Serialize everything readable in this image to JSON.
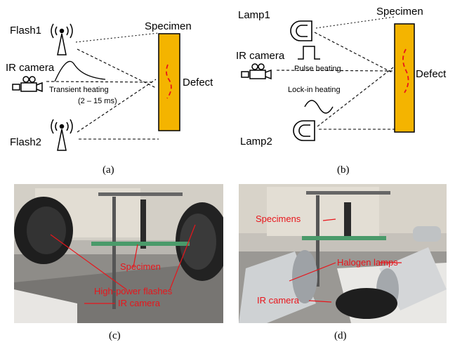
{
  "panel_a": {
    "flash1": "Flash1",
    "flash2": "Flash2",
    "ir_camera": "IR camera",
    "specimen": "Specimen",
    "defect": "Defect",
    "transient_heating": "Transient heating",
    "duration": "(2 – 15 ms)",
    "caption": "(a)"
  },
  "panel_b": {
    "lamp1": "Lamp1",
    "lamp2": "Lamp2",
    "ir_camera": "IR camera",
    "specimen": "Specimen",
    "defect": "Defect",
    "pulse_heating": "Pulse heating",
    "lockin_heating": "Lock-in heating",
    "caption": "(b)"
  },
  "panel_c": {
    "specimen": "Specimen",
    "flashes": "High-power flashes",
    "ir_camera": "IR camera",
    "caption": "(c)"
  },
  "panel_d": {
    "specimens": "Specimens",
    "halogen_lamps": "Halogen lamps",
    "ir_camera": "IR camera",
    "caption": "(d)"
  },
  "colors": {
    "specimen_fill": "#f4b400",
    "defect_line": "#e8151b",
    "annotation": "#e8151b"
  }
}
